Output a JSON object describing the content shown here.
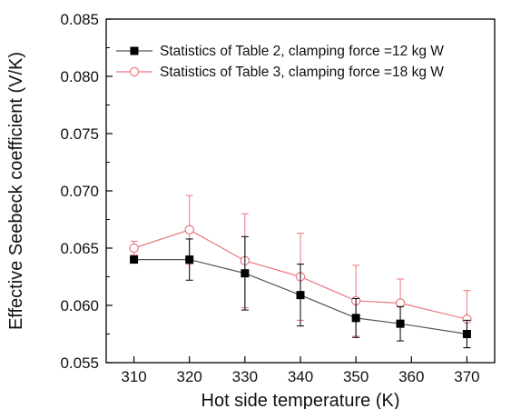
{
  "chart_data": {
    "type": "line",
    "xlabel": "Hot side temperature (K)",
    "ylabel": "Effective Seebeck coefficient (V/K)",
    "xlim": [
      305,
      375
    ],
    "ylim": [
      0.055,
      0.085
    ],
    "x_ticks": [
      310,
      320,
      330,
      340,
      350,
      360,
      370
    ],
    "y_ticks": [
      0.055,
      0.06,
      0.065,
      0.07,
      0.075,
      0.08,
      0.085
    ],
    "x_tick_labels": [
      "310",
      "320",
      "330",
      "340",
      "350",
      "360",
      "370"
    ],
    "y_tick_labels": [
      "0.055",
      "0.060",
      "0.065",
      "0.070",
      "0.075",
      "0.080",
      "0.085"
    ],
    "grid": false,
    "legend_position": "top-right",
    "series": [
      {
        "name": "Statistics of Table 2, clamping force =12 kg W",
        "color": "#555555",
        "marker": "filled-square",
        "marker_color": "#000000",
        "x": [
          310,
          320,
          330,
          340,
          350,
          358,
          370
        ],
        "y": [
          0.064,
          0.064,
          0.0628,
          0.0609,
          0.0589,
          0.0584,
          0.0575
        ],
        "err": [
          0.0,
          0.0018,
          0.0032,
          0.0027,
          0.0017,
          0.0015,
          0.0012
        ]
      },
      {
        "name": "Statistics of Table 3, clamping force =18 kg W",
        "color": "#e8787f",
        "marker": "open-circle",
        "marker_color": "#e8787f",
        "x": [
          310,
          320,
          330,
          340,
          350,
          358,
          370
        ],
        "y": [
          0.065,
          0.0666,
          0.0639,
          0.0625,
          0.0604,
          0.0602,
          0.0588
        ],
        "err": [
          0.0006,
          0.003,
          0.0041,
          0.0038,
          0.0031,
          0.0021,
          0.0025
        ]
      }
    ]
  }
}
